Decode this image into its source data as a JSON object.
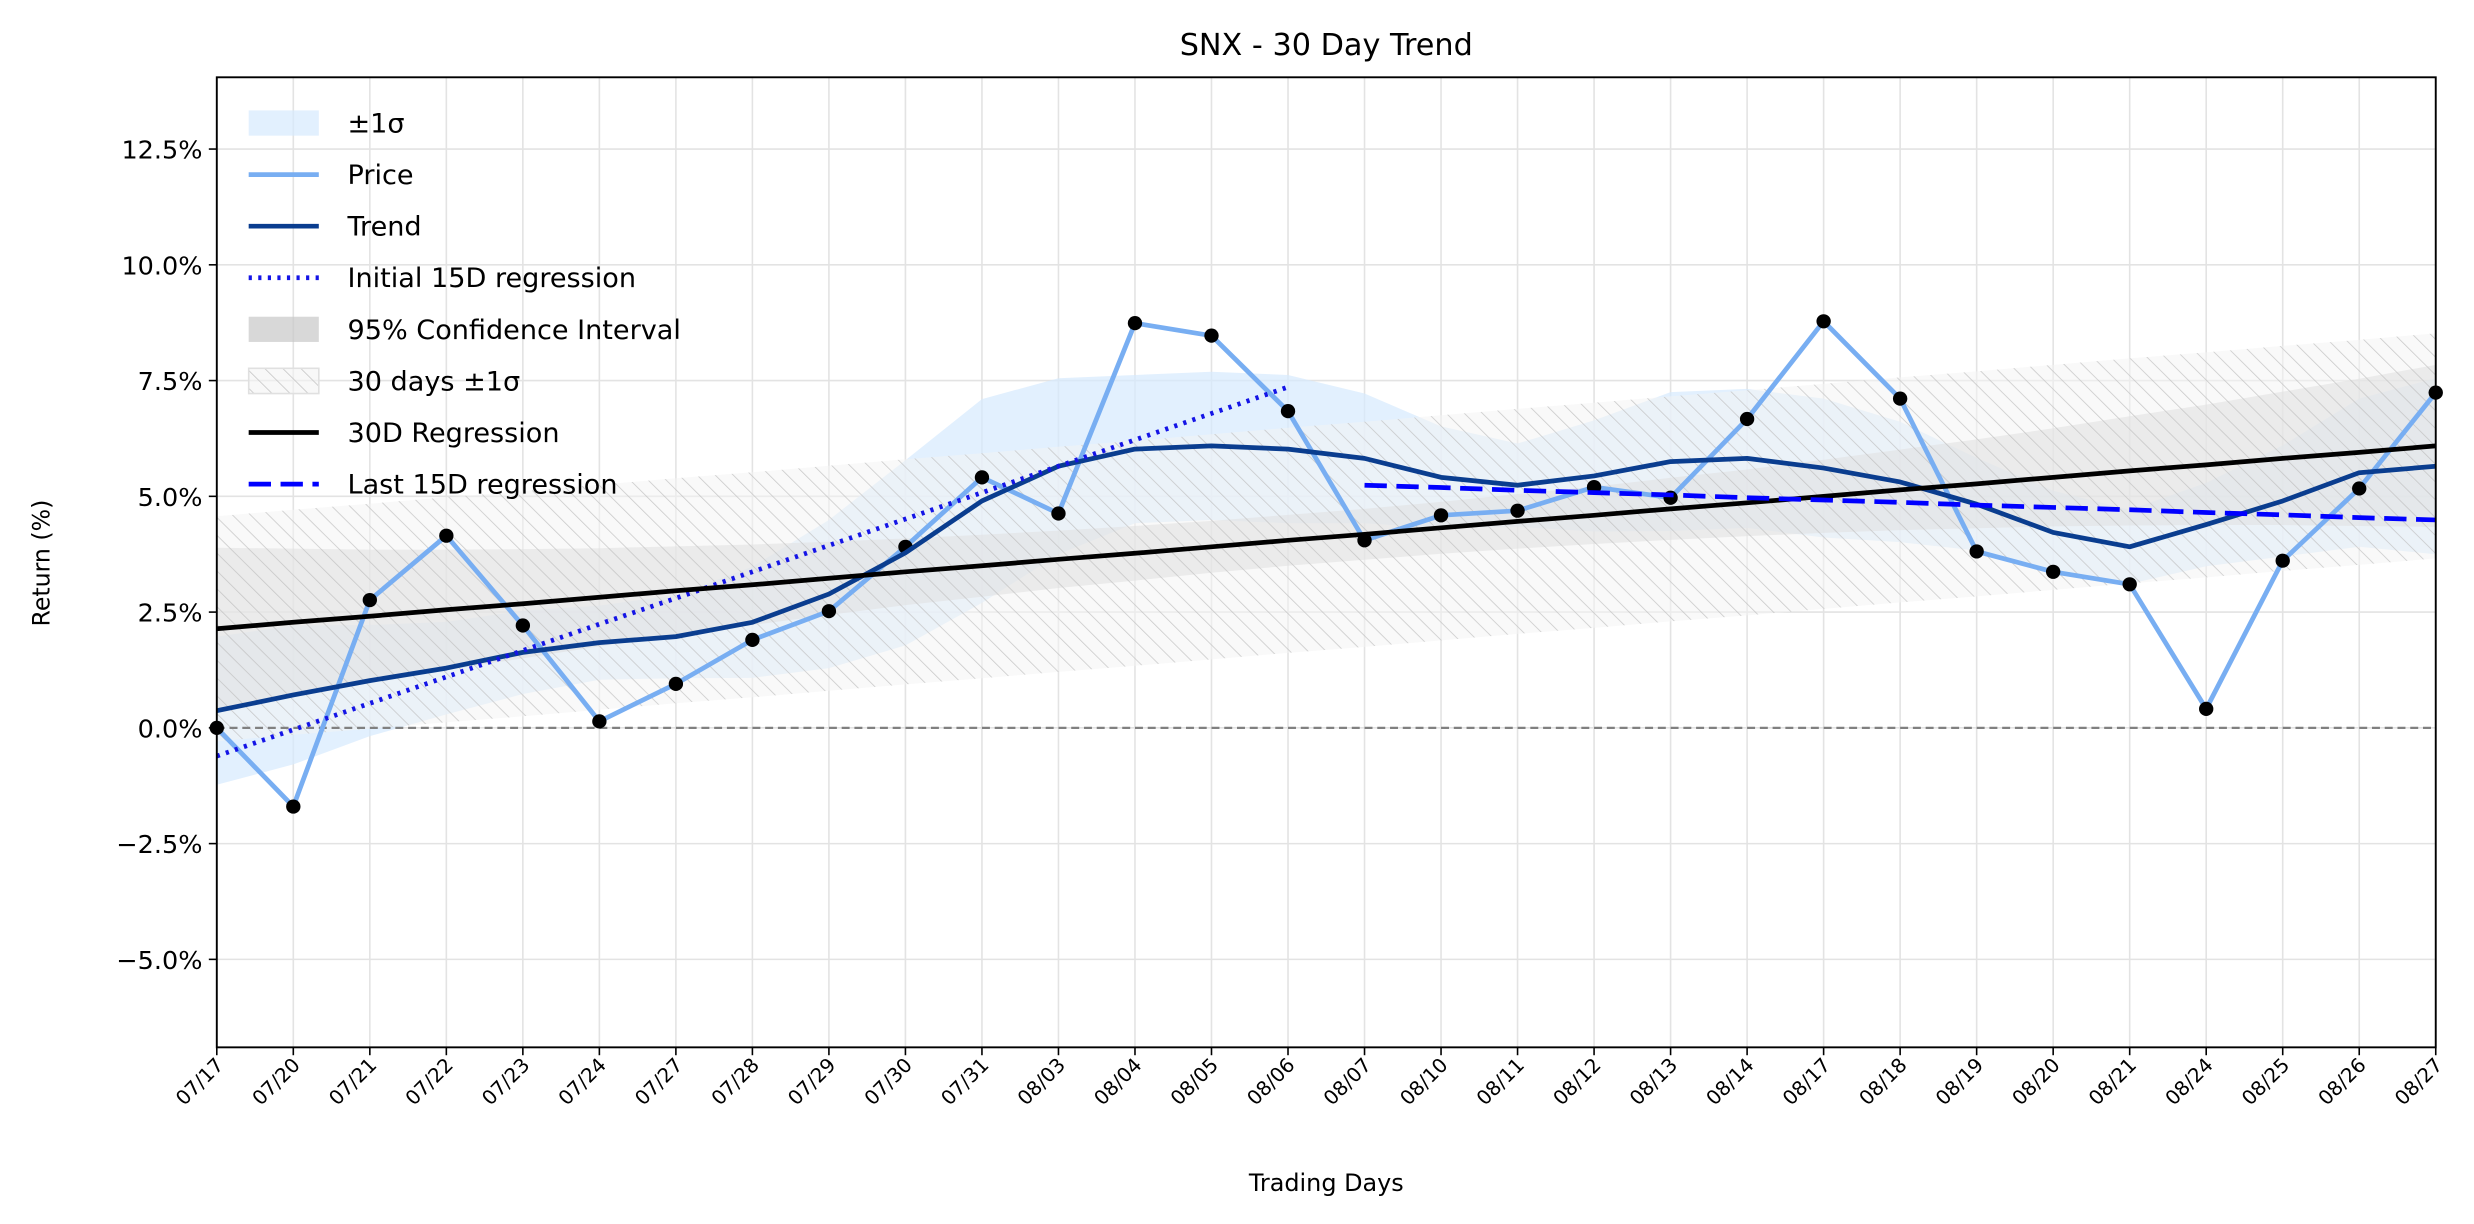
{
  "chart_data": {
    "type": "line",
    "title": "SNX - 30 Day Trend",
    "x_label": "Trading Days",
    "y_label": "Return (%)",
    "categories": [
      "07/17",
      "07/20",
      "07/21",
      "07/22",
      "07/23",
      "07/24",
      "07/27",
      "07/28",
      "07/29",
      "07/30",
      "07/31",
      "08/03",
      "08/04",
      "08/05",
      "08/06",
      "08/07",
      "08/10",
      "08/11",
      "08/12",
      "08/13",
      "08/14",
      "08/17",
      "08/18",
      "08/19",
      "08/20",
      "08/21",
      "08/24",
      "08/25",
      "08/26",
      "08/27"
    ],
    "ylim": [
      -6.9,
      14.05
    ],
    "yticks": [
      {
        "value": -5,
        "label": "−5.0%"
      },
      {
        "value": -2.5,
        "label": "−2.5%"
      },
      {
        "value": 0,
        "label": "0.0%"
      },
      {
        "value": 2.5,
        "label": "2.5%"
      },
      {
        "value": 5,
        "label": "5.0%"
      },
      {
        "value": 7.5,
        "label": "7.5%"
      },
      {
        "value": 10,
        "label": "10.0%"
      },
      {
        "value": 12.5,
        "label": "12.5%"
      }
    ],
    "grid": true,
    "legend": "upper left",
    "reference_line": 0,
    "series": [
      {
        "name": "±1σ",
        "kind": "band",
        "color": "#d6e9fd",
        "lower": [
          -1.23,
          -0.79,
          -0.18,
          0.29,
          0.73,
          1.04,
          1.07,
          1.08,
          1.29,
          1.78,
          2.7,
          3.75,
          4.42,
          4.49,
          4.42,
          4.42,
          4.31,
          4.34,
          4.24,
          4.25,
          4.32,
          4.11,
          4.01,
          3.83,
          3.32,
          3.11,
          3.49,
          3.7,
          3.91,
          3.75
        ],
        "upper": [
          1.97,
          2.21,
          2.22,
          2.29,
          2.53,
          2.64,
          2.87,
          3.48,
          4.49,
          5.78,
          7.1,
          7.55,
          7.62,
          7.69,
          7.62,
          7.22,
          6.51,
          6.14,
          6.64,
          7.25,
          7.32,
          7.11,
          6.61,
          5.83,
          5.12,
          4.71,
          5.29,
          6.1,
          7.11,
          7.55
        ]
      },
      {
        "name": "Price",
        "kind": "line",
        "style": "solid",
        "color": "#78aef2",
        "markers": true,
        "marker_color": "#000000",
        "values": [
          0,
          -1.7,
          2.76,
          4.15,
          2.21,
          0.14,
          0.95,
          1.9,
          2.52,
          3.91,
          5.41,
          4.63,
          8.74,
          8.47,
          6.84,
          4.05,
          4.59,
          4.69,
          5.2,
          4.97,
          6.67,
          8.78,
          7.11,
          3.81,
          3.37,
          3.1,
          0.41,
          3.61,
          5.17,
          7.24
        ]
      },
      {
        "name": "Trend",
        "kind": "line",
        "style": "solid",
        "color": "#0a3d8f",
        "values": [
          0.37,
          0.71,
          1.02,
          1.29,
          1.63,
          1.84,
          1.97,
          2.28,
          2.89,
          3.78,
          4.9,
          5.65,
          6.02,
          6.09,
          6.02,
          5.82,
          5.41,
          5.24,
          5.44,
          5.75,
          5.82,
          5.61,
          5.31,
          4.83,
          4.22,
          3.91,
          4.39,
          4.9,
          5.51,
          5.65
        ]
      },
      {
        "name": "Initial 15D regression",
        "kind": "line",
        "style": "dotted",
        "color": "#1414e6",
        "values": [
          -0.61,
          -0.04,
          0.53,
          1.1,
          1.67,
          2.24,
          2.8,
          3.37,
          3.94,
          4.51,
          5.08,
          5.65,
          6.22,
          6.79,
          7.36,
          null,
          null,
          null,
          null,
          null,
          null,
          null,
          null,
          null,
          null,
          null,
          null,
          null,
          null,
          null
        ]
      },
      {
        "name": "95% Confidence Interval",
        "kind": "band",
        "color": "#c8c8c8",
        "lower": [
          0.39,
          0.69,
          0.97,
          1.25,
          1.5,
          1.76,
          2.0,
          2.22,
          2.44,
          2.65,
          2.83,
          3.02,
          3.18,
          3.35,
          3.5,
          3.63,
          3.76,
          3.87,
          3.97,
          4.06,
          4.14,
          4.21,
          4.27,
          4.31,
          4.35,
          4.37,
          4.38,
          4.38,
          4.36,
          4.34
        ],
        "upper": [
          3.89,
          3.87,
          3.85,
          3.85,
          3.86,
          3.88,
          3.92,
          3.96,
          4.02,
          4.09,
          4.17,
          4.26,
          4.36,
          4.47,
          4.6,
          4.73,
          4.88,
          5.05,
          5.21,
          5.4,
          5.58,
          5.79,
          6.01,
          6.23,
          6.47,
          6.73,
          6.98,
          7.26,
          7.54,
          7.84
        ]
      },
      {
        "name": "30 days ±1σ",
        "kind": "band",
        "hatch": true,
        "color": "#d0d0d0",
        "lower": [
          -0.29,
          -0.15,
          -0.02,
          0.12,
          0.25,
          0.39,
          0.53,
          0.66,
          0.8,
          0.94,
          1.07,
          1.21,
          1.34,
          1.48,
          1.62,
          1.75,
          1.89,
          2.03,
          2.16,
          2.3,
          2.43,
          2.57,
          2.71,
          2.84,
          2.98,
          3.12,
          3.25,
          3.39,
          3.52,
          3.66
        ],
        "upper": [
          4.57,
          4.71,
          4.84,
          4.98,
          5.11,
          5.25,
          5.39,
          5.52,
          5.66,
          5.8,
          5.93,
          6.07,
          6.2,
          6.34,
          6.48,
          6.61,
          6.75,
          6.89,
          7.02,
          7.16,
          7.29,
          7.43,
          7.57,
          7.7,
          7.84,
          7.98,
          8.11,
          8.25,
          8.38,
          8.52
        ]
      },
      {
        "name": "30D Regression",
        "kind": "line",
        "style": "solid",
        "color": "#000000",
        "values": [
          2.14,
          2.28,
          2.41,
          2.55,
          2.68,
          2.82,
          2.96,
          3.09,
          3.23,
          3.37,
          3.5,
          3.64,
          3.77,
          3.91,
          4.05,
          4.18,
          4.32,
          4.46,
          4.59,
          4.73,
          4.86,
          5.0,
          5.14,
          5.27,
          5.41,
          5.55,
          5.68,
          5.82,
          5.95,
          6.09
        ]
      },
      {
        "name": "Last 15D regression",
        "kind": "line",
        "style": "dashed",
        "color": "#0000ff",
        "values": [
          null,
          null,
          null,
          null,
          null,
          null,
          null,
          null,
          null,
          null,
          null,
          null,
          null,
          null,
          null,
          5.24,
          5.19,
          5.13,
          5.08,
          5.03,
          4.97,
          4.92,
          4.87,
          4.81,
          4.76,
          4.71,
          4.65,
          4.6,
          4.54,
          4.49
        ]
      }
    ]
  }
}
